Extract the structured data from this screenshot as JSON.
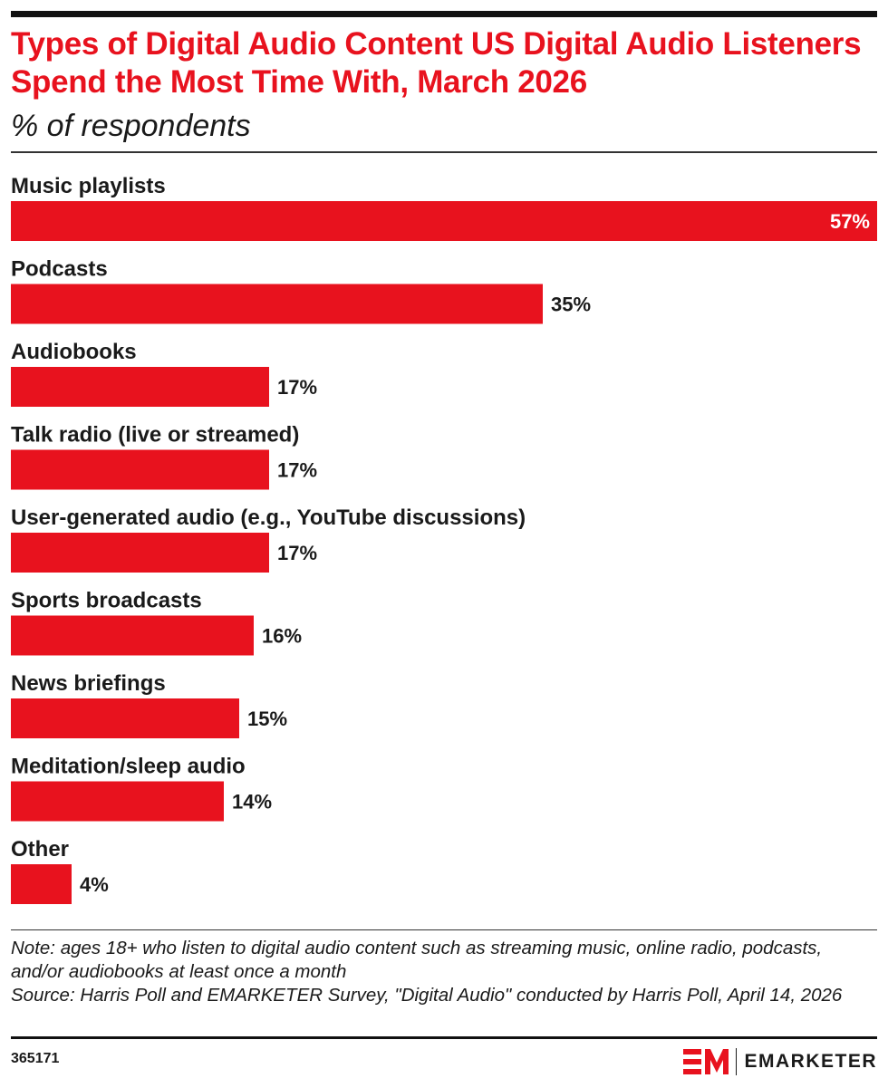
{
  "header": {
    "title": "Types of Digital Audio Content US Digital Audio Listeners Spend the Most Time With, March 2026",
    "subtitle": "% of respondents"
  },
  "chart_data": {
    "type": "bar",
    "orientation": "horizontal",
    "title": "Types of Digital Audio Content US Digital Audio Listeners Spend the Most Time With, March 2026",
    "subtitle": "% of respondents",
    "categories": [
      "Music playlists",
      "Podcasts",
      "Audiobooks",
      "Talk radio (live or streamed)",
      "User-generated audio (e.g., YouTube discussions)",
      "Sports broadcasts",
      "News briefings",
      "Meditation/sleep audio",
      "Other"
    ],
    "values": [
      57,
      35,
      17,
      17,
      17,
      16,
      15,
      14,
      4
    ],
    "value_labels": [
      "57%",
      "35%",
      "17%",
      "17%",
      "17%",
      "16%",
      "15%",
      "14%",
      "4%"
    ],
    "xlim": [
      0,
      57
    ],
    "grid": false,
    "legend": "none",
    "bar_color": "#e8121e"
  },
  "footer": {
    "note": "Note: ages 18+ who listen to digital audio content such as streaming music, online radio, podcasts, and/or audiobooks at least once a month",
    "source": "Source: Harris Poll and EMARKETER Survey, \"Digital Audio\" conducted by Harris Poll, April 14, 2026",
    "chart_id": "365171",
    "brand": "EMARKETER",
    "brand_mark": "EM"
  },
  "colors": {
    "accent": "#e8121e",
    "text": "#1a1a1a"
  }
}
